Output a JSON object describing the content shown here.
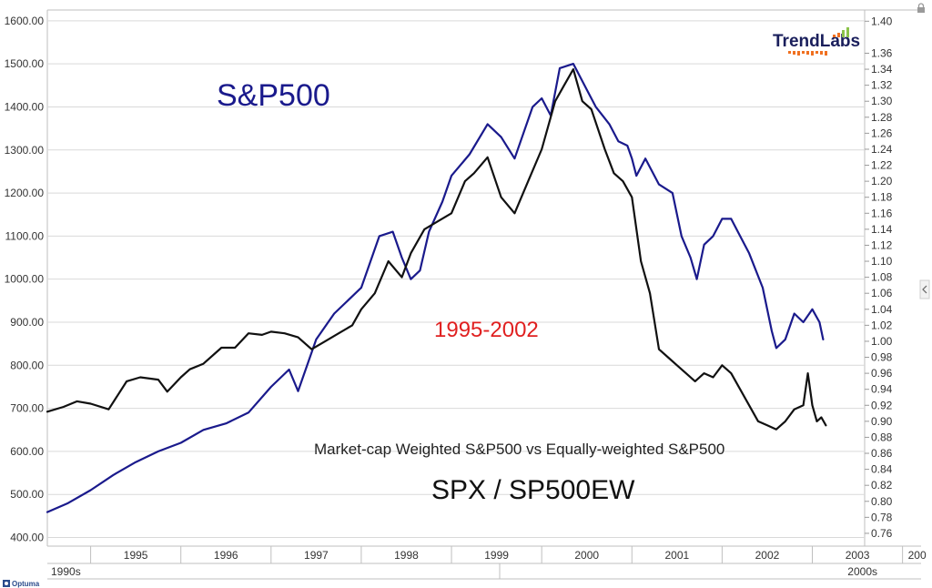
{
  "logo": {
    "text": "TrendLabs",
    "bar_colors": [
      "#f07020",
      "#8bc34a"
    ]
  },
  "overlay": {
    "title": "S&P500",
    "range": "1995-2002",
    "subtitle": "Market-cap Weighted S&P500 vs Equally-weighted S&P500",
    "ratio": "SPX / SP500EW"
  },
  "footer": {
    "brand": "Optuma"
  },
  "chart_data": {
    "type": "line",
    "x_ticks": [
      "1995",
      "1996",
      "1997",
      "1998",
      "1999",
      "2000",
      "2001",
      "2002",
      "2003",
      "200"
    ],
    "decade_labels": [
      "1990s",
      "2000s"
    ],
    "y_left": {
      "range": [
        380,
        1625
      ],
      "ticks": [
        "400.00",
        "500.00",
        "600.00",
        "700.00",
        "800.00",
        "900.00",
        "1000.00",
        "1100.00",
        "1200.00",
        "1300.00",
        "1400.00",
        "1500.00",
        "1600.00"
      ]
    },
    "y_right": {
      "range": [
        0.744,
        1.414
      ],
      "ticks": [
        "0.76",
        "0.78",
        "0.80",
        "0.82",
        "0.84",
        "0.86",
        "0.88",
        "0.90",
        "0.92",
        "0.94",
        "0.96",
        "0.98",
        "1.00",
        "1.02",
        "1.04",
        "1.06",
        "1.08",
        "1.10",
        "1.12",
        "1.14",
        "1.16",
        "1.18",
        "1.20",
        "1.22",
        "1.24",
        "1.26",
        "1.28",
        "1.30",
        "1.32",
        "1.34",
        "1.36",
        "1.40"
      ]
    },
    "x_range": [
      1994.52,
      2003.58
    ],
    "grid": "horizontal-left",
    "series": [
      {
        "color": "#1a1a8c",
        "axis": "left",
        "points": [
          [
            1994.52,
            459
          ],
          [
            1994.75,
            480
          ],
          [
            1995.0,
            510
          ],
          [
            1995.25,
            545
          ],
          [
            1995.5,
            575
          ],
          [
            1995.75,
            600
          ],
          [
            1996.0,
            620
          ],
          [
            1996.25,
            650
          ],
          [
            1996.5,
            665
          ],
          [
            1996.75,
            690
          ],
          [
            1997.0,
            750
          ],
          [
            1997.2,
            790
          ],
          [
            1997.3,
            740
          ],
          [
            1997.5,
            860
          ],
          [
            1997.7,
            920
          ],
          [
            1997.9,
            960
          ],
          [
            1998.0,
            980
          ],
          [
            1998.2,
            1100
          ],
          [
            1998.35,
            1110
          ],
          [
            1998.45,
            1050
          ],
          [
            1998.55,
            1000
          ],
          [
            1998.65,
            1020
          ],
          [
            1998.75,
            1110
          ],
          [
            1998.9,
            1180
          ],
          [
            1999.0,
            1240
          ],
          [
            1999.2,
            1290
          ],
          [
            1999.4,
            1360
          ],
          [
            1999.55,
            1330
          ],
          [
            1999.7,
            1280
          ],
          [
            1999.9,
            1400
          ],
          [
            2000.0,
            1420
          ],
          [
            2000.1,
            1380
          ],
          [
            2000.2,
            1490
          ],
          [
            2000.35,
            1500
          ],
          [
            2000.5,
            1440
          ],
          [
            2000.6,
            1400
          ],
          [
            2000.75,
            1360
          ],
          [
            2000.85,
            1320
          ],
          [
            2000.95,
            1310
          ],
          [
            2001.0,
            1280
          ],
          [
            2001.05,
            1240
          ],
          [
            2001.15,
            1280
          ],
          [
            2001.3,
            1220
          ],
          [
            2001.45,
            1200
          ],
          [
            2001.55,
            1100
          ],
          [
            2001.65,
            1050
          ],
          [
            2001.72,
            1000
          ],
          [
            2001.8,
            1080
          ],
          [
            2001.9,
            1100
          ],
          [
            2002.0,
            1140
          ],
          [
            2002.1,
            1140
          ],
          [
            2002.2,
            1100
          ],
          [
            2002.3,
            1060
          ],
          [
            2002.45,
            980
          ],
          [
            2002.55,
            880
          ],
          [
            2002.6,
            840
          ],
          [
            2002.7,
            860
          ],
          [
            2002.8,
            920
          ],
          [
            2002.9,
            900
          ],
          [
            2003.0,
            930
          ],
          [
            2003.08,
            900
          ],
          [
            2003.12,
            860
          ]
        ]
      },
      {
        "color": "#111111",
        "axis": "right",
        "points": [
          [
            1994.52,
            0.912
          ],
          [
            1994.7,
            0.918
          ],
          [
            1994.85,
            0.925
          ],
          [
            1995.0,
            0.922
          ],
          [
            1995.2,
            0.915
          ],
          [
            1995.4,
            0.95
          ],
          [
            1995.55,
            0.955
          ],
          [
            1995.75,
            0.952
          ],
          [
            1995.85,
            0.937
          ],
          [
            1996.0,
            0.955
          ],
          [
            1996.1,
            0.965
          ],
          [
            1996.25,
            0.972
          ],
          [
            1996.45,
            0.992
          ],
          [
            1996.6,
            0.992
          ],
          [
            1996.75,
            1.01
          ],
          [
            1996.9,
            1.008
          ],
          [
            1997.0,
            1.012
          ],
          [
            1997.15,
            1.01
          ],
          [
            1997.3,
            1.005
          ],
          [
            1997.45,
            0.99
          ],
          [
            1997.6,
            1.0
          ],
          [
            1997.75,
            1.01
          ],
          [
            1997.9,
            1.02
          ],
          [
            1998.0,
            1.04
          ],
          [
            1998.15,
            1.06
          ],
          [
            1998.3,
            1.1
          ],
          [
            1998.45,
            1.08
          ],
          [
            1998.55,
            1.11
          ],
          [
            1998.7,
            1.14
          ],
          [
            1998.85,
            1.15
          ],
          [
            1999.0,
            1.16
          ],
          [
            1999.15,
            1.2
          ],
          [
            1999.25,
            1.21
          ],
          [
            1999.4,
            1.23
          ],
          [
            1999.55,
            1.18
          ],
          [
            1999.7,
            1.16
          ],
          [
            1999.85,
            1.2
          ],
          [
            2000.0,
            1.24
          ],
          [
            2000.15,
            1.3
          ],
          [
            2000.25,
            1.32
          ],
          [
            2000.35,
            1.34
          ],
          [
            2000.45,
            1.3
          ],
          [
            2000.55,
            1.29
          ],
          [
            2000.7,
            1.24
          ],
          [
            2000.8,
            1.21
          ],
          [
            2000.9,
            1.2
          ],
          [
            2001.0,
            1.18
          ],
          [
            2001.1,
            1.1
          ],
          [
            2001.2,
            1.06
          ],
          [
            2001.3,
            0.99
          ],
          [
            2001.4,
            0.98
          ],
          [
            2001.5,
            0.97
          ],
          [
            2001.6,
            0.96
          ],
          [
            2001.7,
            0.95
          ],
          [
            2001.8,
            0.96
          ],
          [
            2001.9,
            0.955
          ],
          [
            2002.0,
            0.97
          ],
          [
            2002.1,
            0.96
          ],
          [
            2002.2,
            0.94
          ],
          [
            2002.3,
            0.92
          ],
          [
            2002.4,
            0.9
          ],
          [
            2002.5,
            0.895
          ],
          [
            2002.6,
            0.89
          ],
          [
            2002.7,
            0.9
          ],
          [
            2002.8,
            0.915
          ],
          [
            2002.9,
            0.92
          ],
          [
            2002.95,
            0.96
          ],
          [
            2003.0,
            0.92
          ],
          [
            2003.05,
            0.9
          ],
          [
            2003.1,
            0.905
          ],
          [
            2003.15,
            0.895
          ]
        ]
      }
    ]
  }
}
